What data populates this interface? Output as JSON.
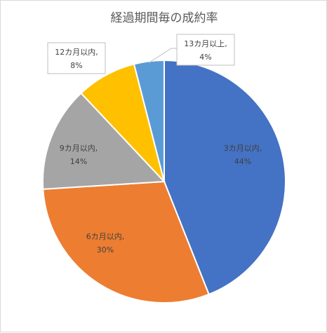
{
  "chart_data": {
    "type": "pie",
    "title": "経過期間毎の成約率",
    "categories": [
      "3カ月以内",
      "6カ月以内",
      "9カ月以内",
      "12カ月以内",
      "13カ月以上"
    ],
    "values": [
      44,
      30,
      14,
      8,
      4
    ],
    "unit": "%",
    "colors": [
      "#4472C4",
      "#ED7D31",
      "#A5A5A5",
      "#FFC000",
      "#5B9BD5"
    ],
    "legend": "none",
    "data_labels": [
      {
        "line1": "3カ月以内,",
        "line2": "44%"
      },
      {
        "line1": "6カ月以内,",
        "line2": "30%"
      },
      {
        "line1": "9カ月以内,",
        "line2": "14%"
      },
      {
        "line1": "12カ月以内,",
        "line2": "8%"
      },
      {
        "line1": "13カ月以上,",
        "line2": "4%"
      }
    ]
  }
}
